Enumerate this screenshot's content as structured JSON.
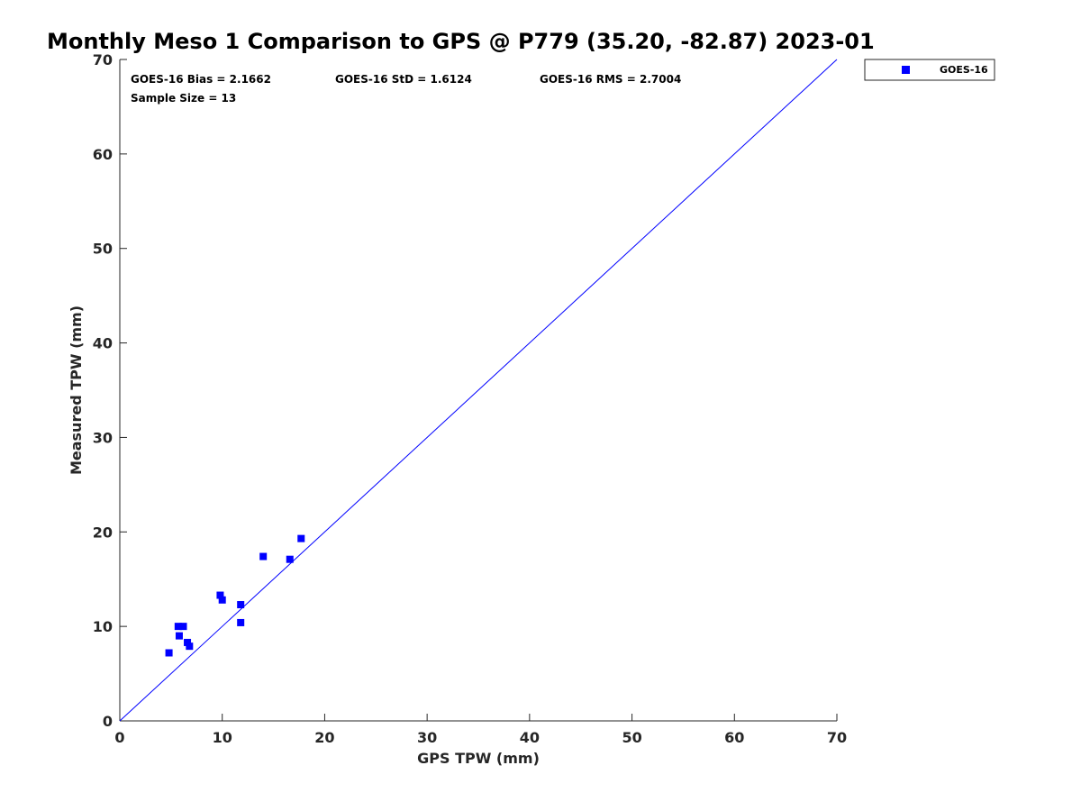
{
  "chart_data": {
    "type": "scatter",
    "title": "Monthly Meso 1 Comparison to GPS @ P779 (35.20, -82.87) 2023-01",
    "xlabel": "GPS TPW (mm)",
    "ylabel": "Measured TPW (mm)",
    "xlim": [
      0,
      70
    ],
    "ylim": [
      0,
      70
    ],
    "xticks": [
      0,
      10,
      20,
      30,
      40,
      50,
      60,
      70
    ],
    "yticks": [
      0,
      10,
      20,
      30,
      40,
      50,
      60,
      70
    ],
    "grid": false,
    "legend_position": "outside-top-right",
    "stats": {
      "bias": "GOES-16 Bias = 2.1662",
      "std": "GOES-16 StD = 1.6124",
      "rms": "GOES-16 RMS = 2.7004",
      "sample_size": "Sample Size = 13"
    },
    "reference_line": {
      "type": "one-to-one",
      "from": [
        0,
        0
      ],
      "to": [
        70,
        70
      ],
      "color": "#0000ff"
    },
    "series": [
      {
        "name": "GOES-16",
        "marker": "square",
        "color": "#0000ff",
        "points": [
          [
            4.8,
            7.2
          ],
          [
            5.7,
            10.0
          ],
          [
            6.2,
            10.0
          ],
          [
            5.8,
            9.0
          ],
          [
            6.6,
            8.3
          ],
          [
            6.8,
            7.9
          ],
          [
            9.8,
            13.3
          ],
          [
            10.0,
            12.8
          ],
          [
            11.8,
            12.3
          ],
          [
            11.8,
            10.4
          ],
          [
            14.0,
            17.4
          ],
          [
            16.6,
            17.1
          ],
          [
            17.7,
            19.3
          ]
        ]
      }
    ]
  }
}
